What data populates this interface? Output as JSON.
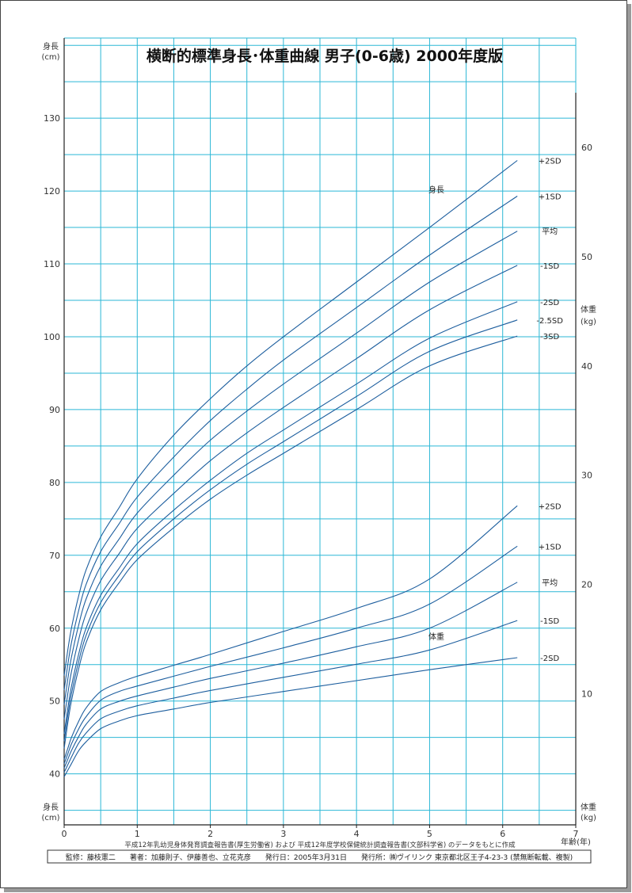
{
  "chart_data": {
    "type": "line",
    "title": "横断的標準身長･体重曲線 男子(0-6歳) 2000年度版",
    "xlabel": "年齢(年)",
    "xlim": [
      0,
      7
    ],
    "x_ticks": [
      "0",
      "1",
      "2",
      "3",
      "4",
      "5",
      "6",
      "7"
    ],
    "height_axis": {
      "label_top": "身長",
      "unit_top": "(cm)",
      "label_bottom": "身長",
      "unit_bottom": "(cm)",
      "ylim": [
        33,
        141
      ],
      "ticks": [
        "40",
        "50",
        "60",
        "70",
        "80",
        "90",
        "100",
        "110",
        "120",
        "130"
      ]
    },
    "weight_axis": {
      "label_top": "体重",
      "unit_top": "(kg)",
      "label_bottom": "体重",
      "unit_bottom": "(kg)",
      "ylim": [
        -2,
        70
      ],
      "ticks": [
        "10",
        "20",
        "30",
        "40",
        "50",
        "60"
      ]
    },
    "grid": true,
    "group_labels": {
      "height": "身長",
      "weight": "体重"
    },
    "height_series": [
      {
        "name": "+2SD",
        "x": [
          0,
          0.05,
          0.1,
          0.2,
          0.3,
          0.5,
          0.75,
          1,
          1.5,
          2,
          2.5,
          3,
          4,
          5,
          6.2
        ],
        "values": [
          53.5,
          57,
          60,
          64.5,
          68,
          72.5,
          76.5,
          80.5,
          86.5,
          91.5,
          96,
          100,
          107.5,
          115,
          124.2
        ]
      },
      {
        "name": "+1SD",
        "x": [
          0,
          0.05,
          0.1,
          0.2,
          0.3,
          0.5,
          0.75,
          1,
          1.5,
          2,
          2.5,
          3,
          4,
          5,
          6.2
        ],
        "values": [
          51.5,
          55,
          58,
          62.5,
          66,
          70.5,
          74.3,
          78,
          83.5,
          88.5,
          92.8,
          96.8,
          104,
          111.2,
          119.3
        ]
      },
      {
        "name": "平均",
        "x": [
          0,
          0.05,
          0.1,
          0.2,
          0.3,
          0.5,
          0.75,
          1,
          1.5,
          2,
          2.5,
          3,
          4,
          5,
          6.2
        ],
        "values": [
          49.5,
          53,
          56,
          60.5,
          64,
          68.5,
          72.2,
          75.8,
          81,
          85.8,
          89.8,
          93.5,
          100.5,
          107.5,
          114.5
        ]
      },
      {
        "name": "-1SD",
        "x": [
          0,
          0.05,
          0.1,
          0.2,
          0.3,
          0.5,
          0.75,
          1,
          1.5,
          2,
          2.5,
          3,
          4,
          5,
          6.2
        ],
        "values": [
          47.5,
          51,
          54,
          58.5,
          62,
          66.5,
          70.2,
          73.7,
          78.5,
          83,
          86.8,
          90.3,
          97,
          103.7,
          109.8
        ]
      },
      {
        "name": "-2SD",
        "x": [
          0,
          0.05,
          0.1,
          0.2,
          0.3,
          0.5,
          0.75,
          1,
          1.5,
          2,
          2.5,
          3,
          4,
          5,
          6.2
        ],
        "values": [
          45.5,
          49,
          52,
          56.5,
          60,
          64.5,
          68.2,
          71.6,
          76.2,
          80.3,
          84,
          87.2,
          93.5,
          99.8,
          104.8
        ]
      },
      {
        "name": "-2.5SD",
        "x": [
          0,
          0.05,
          0.1,
          0.2,
          0.3,
          0.5,
          0.75,
          1,
          1.5,
          2,
          2.5,
          3,
          4,
          5,
          6.2
        ],
        "values": [
          44.5,
          48,
          51,
          55.5,
          59,
          63.5,
          67.2,
          70.5,
          75,
          79,
          82.5,
          85.6,
          91.8,
          98,
          102.3
        ]
      },
      {
        "name": "-3SD",
        "x": [
          0,
          0.05,
          0.1,
          0.2,
          0.3,
          0.5,
          0.75,
          1,
          1.5,
          2,
          2.5,
          3,
          4,
          5,
          6.2
        ],
        "values": [
          43.5,
          47,
          50,
          54.5,
          58,
          62.5,
          66.2,
          69.4,
          73.8,
          77.7,
          81,
          84,
          90,
          96,
          100.1
        ]
      }
    ],
    "weight_series": [
      {
        "name": "+2SD",
        "x": [
          0,
          0.05,
          0.1,
          0.2,
          0.3,
          0.5,
          0.75,
          1,
          1.5,
          2,
          3,
          4,
          5,
          6.2
        ],
        "values": [
          4,
          5,
          6,
          7.5,
          8.7,
          10.2,
          11,
          11.6,
          12.6,
          13.6,
          15.7,
          17.8,
          20.5,
          27.2
        ]
      },
      {
        "name": "+1SD",
        "x": [
          0,
          0.05,
          0.1,
          0.2,
          0.3,
          0.5,
          0.75,
          1,
          1.5,
          2,
          3,
          4,
          5,
          6.2
        ],
        "values": [
          3.6,
          4.5,
          5.4,
          6.8,
          7.9,
          9.4,
          10.2,
          10.7,
          11.6,
          12.5,
          14.2,
          16,
          18.2,
          23.5
        ]
      },
      {
        "name": "平均",
        "x": [
          0,
          0.05,
          0.1,
          0.2,
          0.3,
          0.5,
          0.75,
          1,
          1.5,
          2,
          3,
          4,
          5,
          6.2
        ],
        "values": [
          3.2,
          4,
          4.8,
          6.1,
          7.2,
          8.6,
          9.3,
          9.8,
          10.6,
          11.4,
          12.8,
          14.3,
          16,
          20.2
        ]
      },
      {
        "name": "-1SD",
        "x": [
          0,
          0.05,
          0.1,
          0.2,
          0.3,
          0.5,
          0.75,
          1,
          1.5,
          2,
          3,
          4,
          5,
          6.2
        ],
        "values": [
          2.8,
          3.5,
          4.2,
          5.5,
          6.4,
          7.7,
          8.4,
          8.9,
          9.6,
          10.3,
          11.5,
          12.7,
          14,
          16.7
        ]
      },
      {
        "name": "-2SD",
        "x": [
          0,
          0.05,
          0.1,
          0.2,
          0.3,
          0.5,
          0.75,
          1,
          1.5,
          2,
          3,
          4,
          5,
          6.2
        ],
        "values": [
          2.4,
          3,
          3.6,
          4.8,
          5.6,
          6.8,
          7.5,
          8,
          8.6,
          9.2,
          10.2,
          11.2,
          12.2,
          13.3
        ]
      }
    ],
    "colors": {
      "grid": "#2bb7d6",
      "curve": "#1d5e9e",
      "axis": "#222222"
    }
  },
  "footer": {
    "source_note": "平成12年乳幼児身体発育調査報告書(厚生労働省) および 平成12年度学校保健統計調査報告書(文部科学省) のデータをもとに作成",
    "credits": "監修：藤枝憲二　　著者：加藤則子、伊藤善也、立花克彦　　発行日：2005年3月31日　　発行所：㈱ヴイリンク 東京都北区王子4-23-3 (禁無断転載、複製)"
  }
}
